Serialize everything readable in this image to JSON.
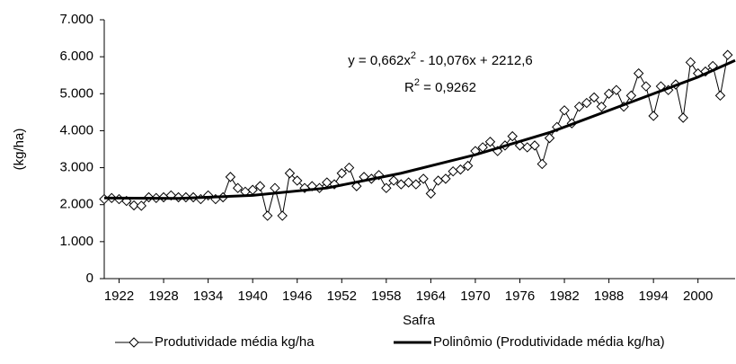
{
  "chart_data": {
    "type": "line",
    "y_label": "(kg/ha)",
    "x_label": "Safra",
    "xlim": [
      1920,
      2005
    ],
    "ylim": [
      0,
      7000
    ],
    "xticks": [
      1922,
      1928,
      1934,
      1940,
      1946,
      1952,
      1958,
      1964,
      1970,
      1976,
      1982,
      1988,
      1994,
      2000
    ],
    "yticks": [
      0,
      {
        "value": 1000,
        "label": "1.000"
      },
      {
        "value": 2000,
        "label": "2.000"
      },
      {
        "value": 3000,
        "label": "3.000"
      },
      {
        "value": 4000,
        "label": "4.000"
      },
      {
        "value": 5000,
        "label": "5.000"
      },
      {
        "value": 6000,
        "label": "6.000"
      },
      {
        "value": 7000,
        "label": "7.000"
      }
    ],
    "equation": {
      "text": "y = 0,662x",
      "sup": "2",
      "rest": " - 10,076x + 2212,6"
    },
    "r_squared": {
      "text": "R",
      "sup": "2",
      "rest": " = 0,9262"
    },
    "series": [
      {
        "name": "Produtividade média kg/ha",
        "color": "#000000",
        "marker": "diamond",
        "x": [
          1920,
          1921,
          1922,
          1923,
          1924,
          1925,
          1926,
          1927,
          1928,
          1929,
          1930,
          1931,
          1932,
          1933,
          1934,
          1935,
          1936,
          1937,
          1938,
          1939,
          1940,
          1941,
          1942,
          1943,
          1944,
          1945,
          1946,
          1947,
          1948,
          1949,
          1950,
          1951,
          1952,
          1953,
          1954,
          1955,
          1956,
          1957,
          1958,
          1959,
          1960,
          1961,
          1962,
          1963,
          1964,
          1965,
          1966,
          1967,
          1968,
          1969,
          1970,
          1971,
          1972,
          1973,
          1974,
          1975,
          1976,
          1977,
          1978,
          1979,
          1980,
          1981,
          1982,
          1983,
          1984,
          1985,
          1986,
          1987,
          1988,
          1989,
          1990,
          1991,
          1992,
          1993,
          1994,
          1995,
          1996,
          1997,
          1998,
          1999,
          2000,
          2001,
          2002,
          2003,
          2004
        ],
        "values": [
          2150,
          2180,
          2150,
          2100,
          1980,
          1970,
          2200,
          2180,
          2200,
          2250,
          2200,
          2200,
          2200,
          2150,
          2250,
          2150,
          2200,
          2750,
          2450,
          2350,
          2400,
          2500,
          1700,
          2450,
          1700,
          2850,
          2650,
          2450,
          2500,
          2450,
          2600,
          2550,
          2850,
          3000,
          2500,
          2750,
          2700,
          2800,
          2450,
          2650,
          2550,
          2600,
          2550,
          2700,
          2300,
          2650,
          2700,
          2900,
          2950,
          3050,
          3450,
          3550,
          3700,
          3450,
          3600,
          3850,
          3600,
          3550,
          3600,
          3100,
          3800,
          4100,
          4550,
          4200,
          4650,
          4750,
          4900,
          4650,
          5000,
          5100,
          4650,
          4950,
          5550,
          5200,
          4400,
          5200,
          5100,
          5250,
          4350,
          5850,
          5550,
          5600,
          5750,
          4950,
          6050
        ]
      },
      {
        "name": "Polinômio (Produtividade média kg/ha)",
        "color": "#000000",
        "marker": "none",
        "x": [
          1920,
          1930,
          1940,
          1950,
          1960,
          1970,
          1980,
          1990,
          2000,
          2005
        ],
        "values": [
          2180,
          2170,
          2250,
          2450,
          2850,
          3350,
          3950,
          4700,
          5450,
          5900
        ]
      }
    ]
  }
}
